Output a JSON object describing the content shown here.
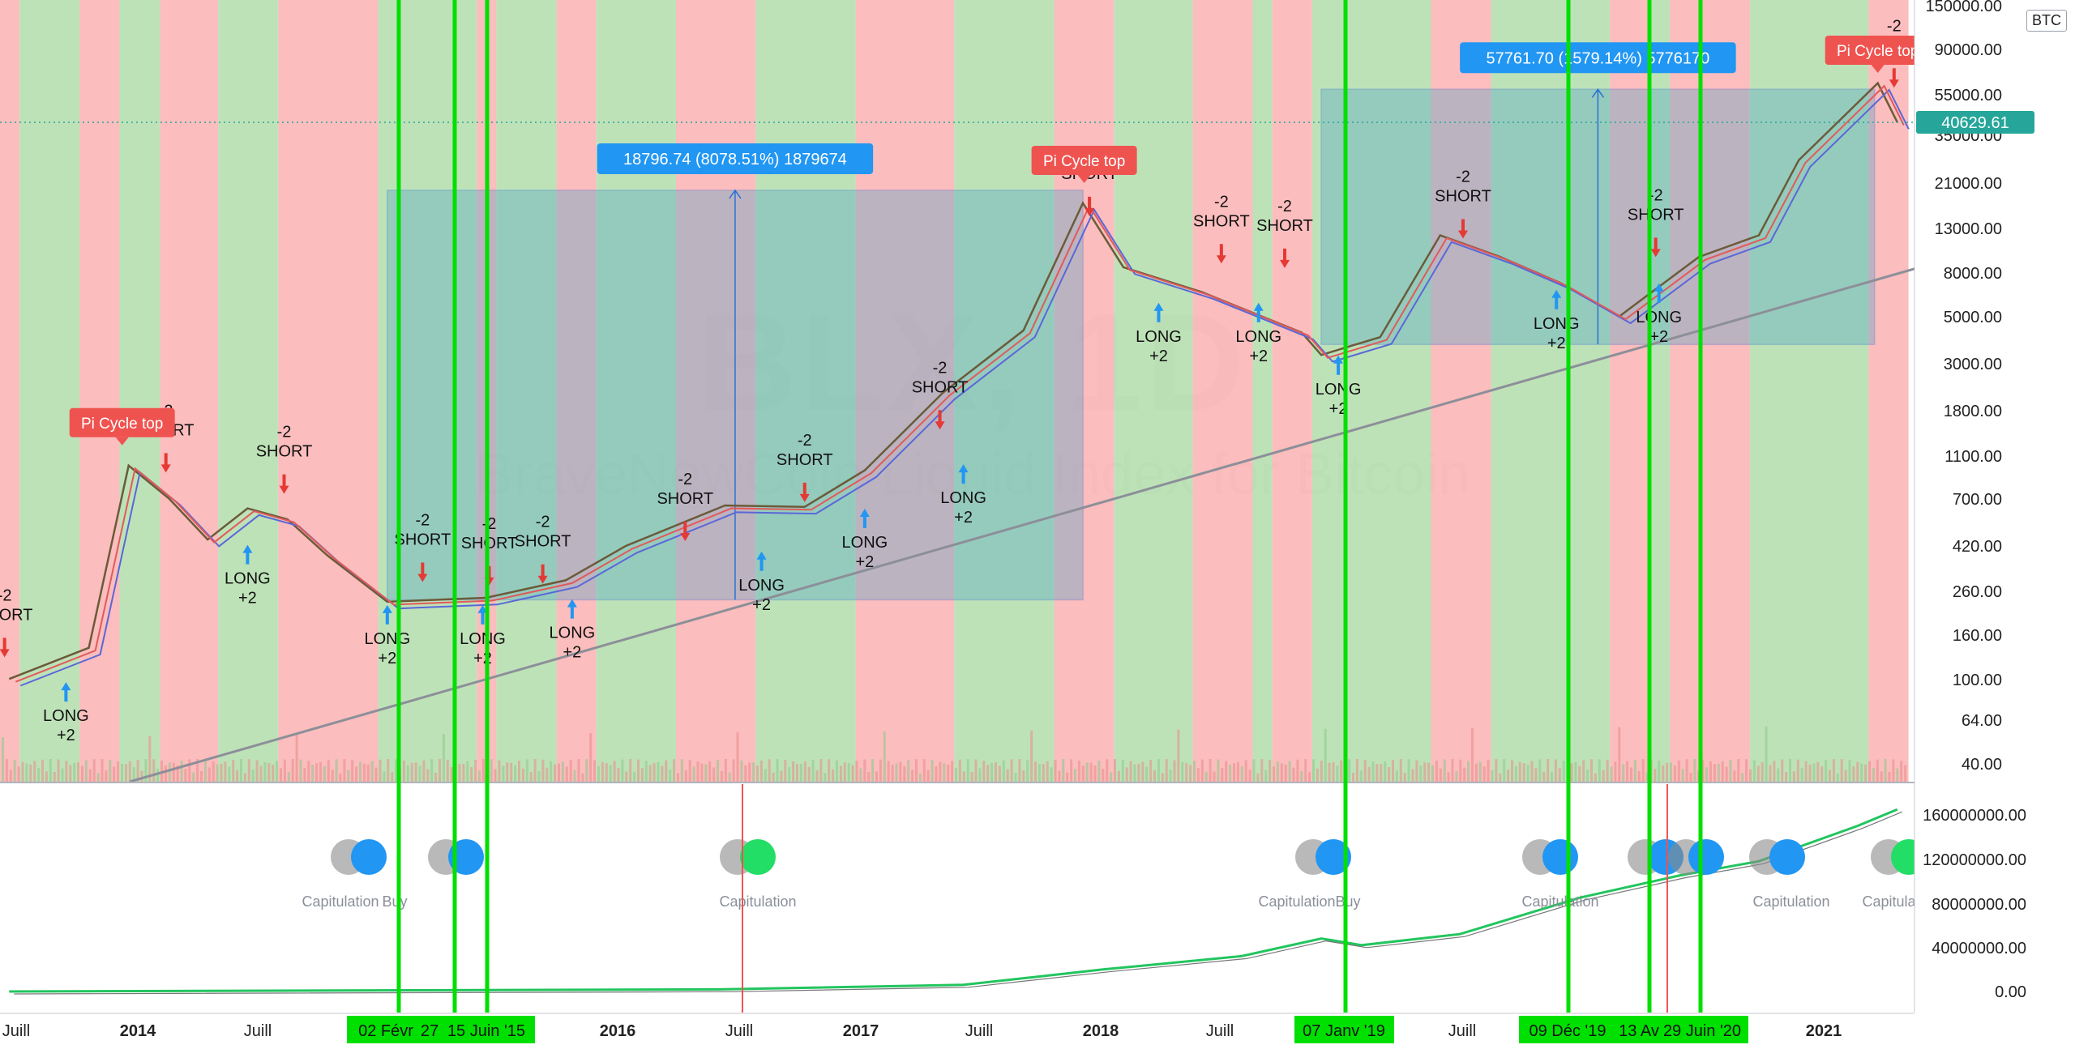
{
  "symbol": "BTC",
  "watermark": {
    "title": "BLX, 1D",
    "subtitle": "BraveNewCoin Liquid Index for Bitcoin"
  },
  "price_label": "40629.61",
  "colors": {
    "red_band": "#f9a7a7",
    "green_band": "#a8d8a0",
    "measure_box": "#4aa3c8",
    "long": "#2196f3",
    "short": "#e53935",
    "green_line": "#00e000",
    "pi_top": "#ef5350",
    "tooltip": "#2196f3"
  },
  "chart_data": {
    "type": "line",
    "title": "BLX, 1D",
    "subtitle": "BraveNewCoin Liquid Index for Bitcoin",
    "y_scale": "log",
    "ylim": [
      35,
      150000
    ],
    "y_ticks": [
      "150000.00",
      "90000.00",
      "55000.00",
      "35000.00",
      "21000.00",
      "13000.00",
      "8000.00",
      "5000.00",
      "3000.00",
      "1800.00",
      "1100.00",
      "700.00",
      "420.00",
      "260.00",
      "160.00",
      "100.00",
      "64.00",
      "40.00"
    ],
    "x_ticks": [
      "Juill",
      "2014",
      "Juill",
      "2016",
      "Juill",
      "2017",
      "Juill",
      "2018",
      "Juill",
      "Juill",
      "2021",
      "Juill"
    ],
    "lower_ticks": [
      "160000000.00",
      "120000000.00",
      "80000000.00",
      "40000000.00",
      "0.00"
    ],
    "price_series": [
      {
        "date": "2013-06",
        "v": 100
      },
      {
        "date": "2013-10",
        "v": 140
      },
      {
        "date": "2013-12",
        "v": 1000
      },
      {
        "date": "2014-02",
        "v": 700
      },
      {
        "date": "2014-04",
        "v": 450
      },
      {
        "date": "2014-06",
        "v": 630
      },
      {
        "date": "2014-08",
        "v": 560
      },
      {
        "date": "2014-10",
        "v": 380
      },
      {
        "date": "2015-01",
        "v": 230
      },
      {
        "date": "2015-06",
        "v": 240
      },
      {
        "date": "2015-10",
        "v": 290
      },
      {
        "date": "2016-01",
        "v": 420
      },
      {
        "date": "2016-06",
        "v": 650
      },
      {
        "date": "2016-10",
        "v": 640
      },
      {
        "date": "2017-01",
        "v": 950
      },
      {
        "date": "2017-05",
        "v": 2200
      },
      {
        "date": "2017-09",
        "v": 4300
      },
      {
        "date": "2017-12",
        "v": 17000
      },
      {
        "date": "2018-02",
        "v": 8500
      },
      {
        "date": "2018-06",
        "v": 6500
      },
      {
        "date": "2018-11",
        "v": 4200
      },
      {
        "date": "2018-12",
        "v": 3300
      },
      {
        "date": "2019-03",
        "v": 4000
      },
      {
        "date": "2019-06",
        "v": 12000
      },
      {
        "date": "2019-09",
        "v": 9500
      },
      {
        "date": "2019-12",
        "v": 7200
      },
      {
        "date": "2020-03",
        "v": 5000
      },
      {
        "date": "2020-07",
        "v": 9500
      },
      {
        "date": "2020-10",
        "v": 12000
      },
      {
        "date": "2020-12",
        "v": 27000
      },
      {
        "date": "2021-04",
        "v": 62000
      },
      {
        "date": "2021-05",
        "v": 40629.61
      }
    ],
    "annotations": {
      "measures": [
        "18796.74 (8078.51%) 1879674",
        "57761.70 (1579.14%) 5776170"
      ],
      "pi_cycle": [
        "Pi Cycle top",
        "Pi Cycle top",
        "Pi Cycle top"
      ],
      "short_label": "SHORT",
      "short_value": "-2",
      "long_label": "LONG",
      "long_value": "+2",
      "vline_dates": [
        "02 Févr",
        "27",
        "15 Juin '15",
        "07 Janv '19",
        "09 Déc '19",
        "13 Av",
        "29 Juin '20"
      ],
      "capitulation_label": "Capitulation",
      "buy_label": "Buy"
    }
  }
}
